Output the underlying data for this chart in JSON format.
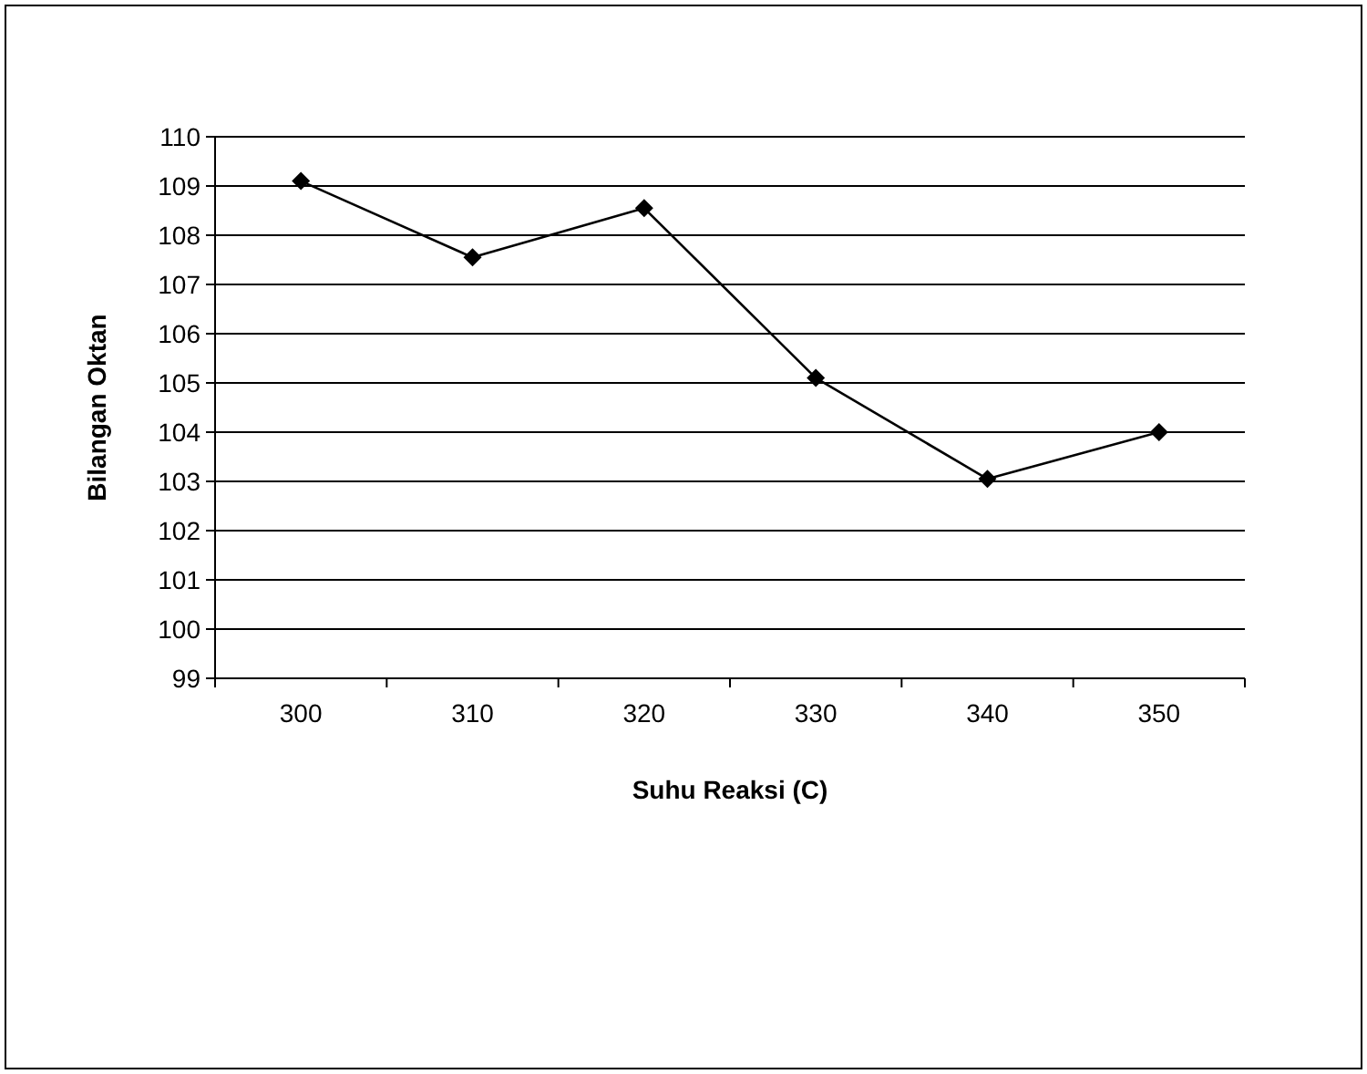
{
  "chart_data": {
    "type": "line",
    "xlabel": "Suhu Reaksi (C)",
    "ylabel": "Bilangan Oktan",
    "categories": [
      "300",
      "310",
      "320",
      "330",
      "340",
      "350"
    ],
    "series": [
      {
        "color": "#000000",
        "values": [
          109.1,
          107.55,
          108.55,
          105.1,
          103.05,
          104.0
        ]
      }
    ],
    "ylim": [
      99,
      110
    ],
    "yticks": [
      99,
      100,
      101,
      102,
      103,
      104,
      105,
      106,
      107,
      108,
      109,
      110
    ],
    "grid": "y",
    "marker": "diamond",
    "line_style": "solid"
  }
}
